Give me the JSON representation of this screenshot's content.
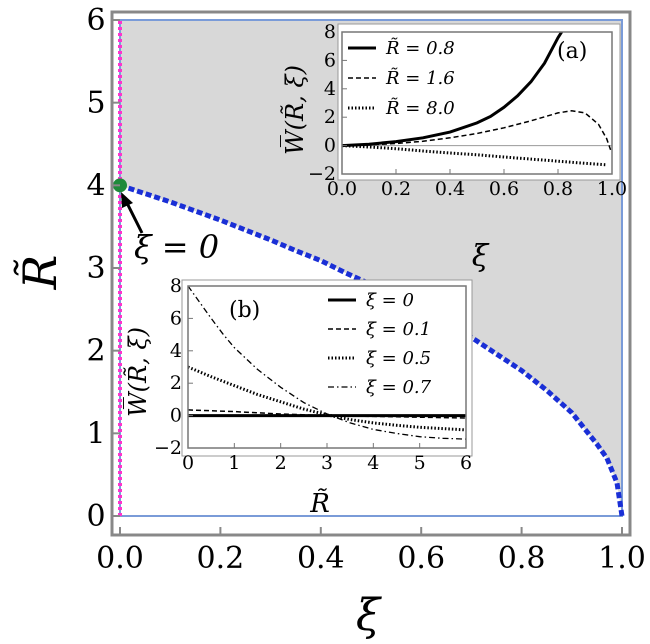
{
  "chart_data": [
    {
      "type": "line",
      "xlabel": "ξ",
      "ylabel": "R̃",
      "xlim": [
        0,
        1
      ],
      "ylim": [
        0,
        6
      ],
      "xticks": [
        "0.0",
        "0.2",
        "0.4",
        "0.6",
        "0.8",
        "1.0"
      ],
      "yticks": [
        "0",
        "1",
        "2",
        "3",
        "4",
        "5",
        "6"
      ],
      "grid": false,
      "shaded_region": "above boundary curve (gray)",
      "series": [
        {
          "style": "blue dashed",
          "color": "#1a2fd6",
          "x": [
            0,
            0.05,
            0.1,
            0.15,
            0.2,
            0.25,
            0.3,
            0.35,
            0.4,
            0.45,
            0.5,
            0.55,
            0.6,
            0.65,
            0.7,
            0.75,
            0.8,
            0.85,
            0.9,
            0.95,
            0.97,
            0.99,
            1.0
          ],
          "y": [
            4.0,
            3.9,
            3.8,
            3.69,
            3.58,
            3.46,
            3.34,
            3.21,
            3.09,
            2.94,
            2.8,
            2.66,
            2.51,
            2.34,
            2.16,
            1.96,
            1.76,
            1.52,
            1.25,
            0.87,
            0.7,
            0.4,
            0.0
          ]
        },
        {
          "style": "magenta dotted vertical",
          "color": "#ff33cc",
          "x": [
            0,
            0
          ],
          "y": [
            0,
            6
          ]
        }
      ],
      "annotations": [
        {
          "text": "ξ = 0",
          "point": [
            0,
            4
          ]
        }
      ],
      "point_marker": {
        "x": 0,
        "y": 4,
        "color": "#1e8a3a"
      }
    },
    {
      "type": "line",
      "label": "(a)",
      "xlabel": "ξ",
      "ylabel": "W̅(R̃, ξ)",
      "xlim": [
        0,
        1
      ],
      "ylim": [
        -2,
        8
      ],
      "xticks": [
        "0.0",
        "0.2",
        "0.4",
        "0.6",
        "0.8",
        "1.0"
      ],
      "yticks": [
        "8",
        "6",
        "4",
        "2",
        "0",
        "−2"
      ],
      "legend_position": "top-right",
      "series": [
        {
          "name": "R̃ = 0.8",
          "style": "solid thick",
          "x": [
            0,
            0.1,
            0.2,
            0.3,
            0.4,
            0.5,
            0.55,
            0.6,
            0.65,
            0.7,
            0.75,
            0.8,
            0.82
          ],
          "y": [
            0,
            0.1,
            0.28,
            0.55,
            0.95,
            1.6,
            2.05,
            2.7,
            3.5,
            4.5,
            5.8,
            7.6,
            8.2
          ]
        },
        {
          "name": "R̃ = 1.6",
          "style": "dashed",
          "x": [
            0,
            0.1,
            0.2,
            0.3,
            0.4,
            0.5,
            0.6,
            0.7,
            0.8,
            0.85,
            0.9,
            0.95,
            0.98,
            0.995
          ],
          "y": [
            0,
            0.05,
            0.15,
            0.3,
            0.55,
            0.85,
            1.25,
            1.75,
            2.3,
            2.45,
            2.3,
            1.5,
            0.5,
            -0.3
          ]
        },
        {
          "name": "R̃ = 8.0",
          "style": "dotted",
          "x": [
            0,
            0.1,
            0.2,
            0.3,
            0.4,
            0.5,
            0.6,
            0.7,
            0.8,
            0.9,
            0.98
          ],
          "y": [
            0,
            -0.1,
            -0.22,
            -0.38,
            -0.52,
            -0.65,
            -0.8,
            -0.95,
            -1.1,
            -1.25,
            -1.35
          ]
        }
      ]
    },
    {
      "type": "line",
      "label": "(b)",
      "xlabel": "R̃",
      "ylabel": "W̅(R̃, ξ)",
      "xlim": [
        0,
        6
      ],
      "ylim": [
        -2,
        8
      ],
      "xticks": [
        "0",
        "1",
        "2",
        "3",
        "4",
        "5",
        "6"
      ],
      "yticks": [
        "8",
        "6",
        "4",
        "2",
        "0",
        "−2"
      ],
      "legend_position": "top-right",
      "series": [
        {
          "name": "ξ = 0",
          "style": "solid thick",
          "x": [
            0,
            6
          ],
          "y": [
            0,
            0
          ]
        },
        {
          "name": "ξ = 0.1",
          "style": "dashed",
          "x": [
            0,
            1,
            2,
            3,
            4,
            5,
            6
          ],
          "y": [
            0.35,
            0.25,
            0.1,
            0.0,
            -0.05,
            -0.1,
            -0.15
          ]
        },
        {
          "name": "ξ = 0.5",
          "style": "dotted",
          "x": [
            0,
            0.5,
            1,
            1.5,
            2,
            2.5,
            3,
            3.5,
            4,
            4.5,
            5,
            5.5,
            6
          ],
          "y": [
            3.0,
            2.4,
            1.85,
            1.3,
            0.85,
            0.4,
            0.05,
            -0.25,
            -0.45,
            -0.6,
            -0.72,
            -0.8,
            -0.88
          ]
        },
        {
          "name": "ξ = 0.7",
          "style": "dash-dot",
          "x": [
            0,
            0.25,
            0.5,
            0.75,
            1,
            1.5,
            2,
            2.5,
            3,
            3.5,
            4,
            4.5,
            5,
            5.5,
            6
          ],
          "y": [
            8.0,
            7.0,
            6.0,
            5.05,
            4.2,
            2.85,
            1.75,
            0.8,
            0.1,
            -0.45,
            -0.85,
            -1.1,
            -1.3,
            -1.4,
            -1.45
          ]
        }
      ]
    }
  ]
}
